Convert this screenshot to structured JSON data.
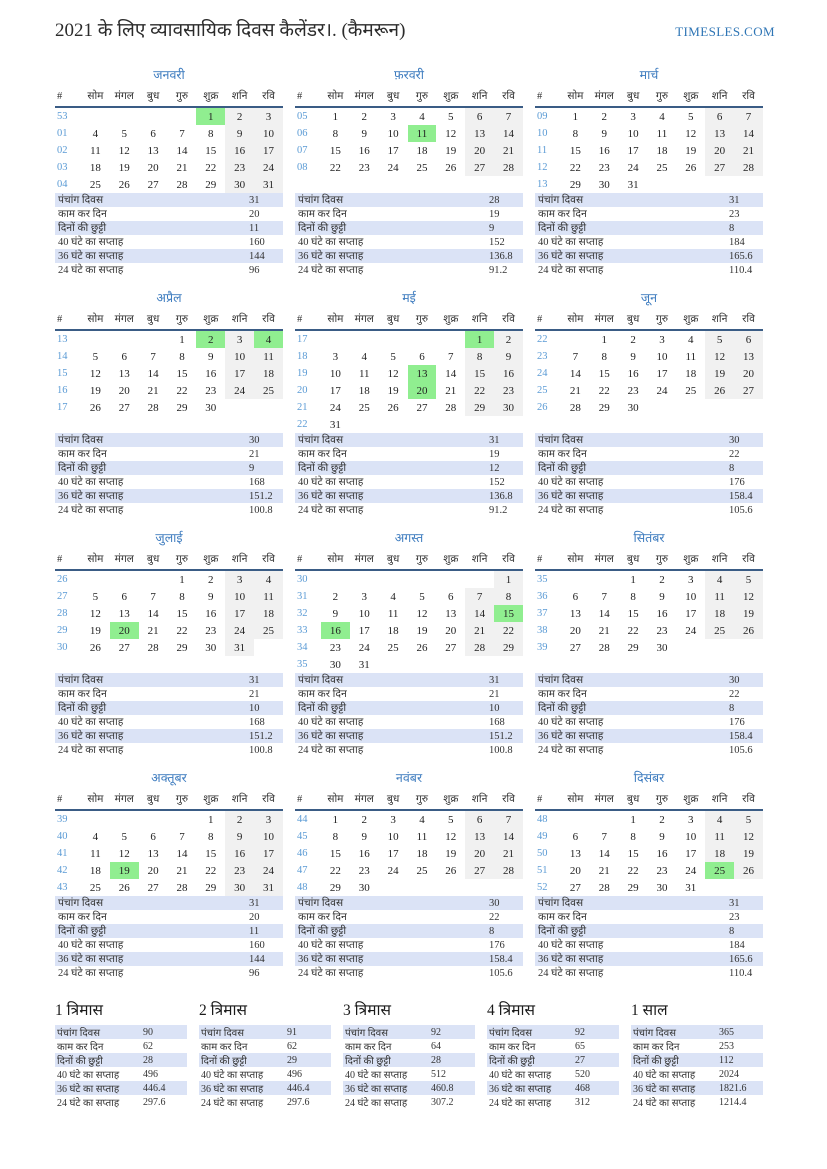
{
  "header": {
    "title": "2021 के लिए व्यावसायिक दिवस कैलेंडर।. (कैमरून)",
    "site": "TIMESLES.COM"
  },
  "colors": {
    "accent_blue": "#3e7cbf",
    "week_number_blue": "#5b9bd5",
    "holiday_green": "#90ee90",
    "weekend_gray": "#f1f1f1",
    "stats_row_blue": "#dbe3f6",
    "header_rule_blue": "#3a5c85",
    "link_blue": "#2e75b5"
  },
  "day_headers": [
    "#",
    "सोम",
    "मंगल",
    "बुध",
    "गुरु",
    "शुक्र",
    "शनि",
    "रवि"
  ],
  "stat_labels": [
    "पंचांग दिवस",
    "काम कर दिन",
    "दिनों की छुट्टी",
    "40 घंटे का सप्ताह",
    "36 घंटे का सप्ताह",
    "24 घंटे का सप्ताह"
  ],
  "months": [
    {
      "name": "जनवरी",
      "holidays": [
        1
      ],
      "weeks": [
        [
          "53",
          "",
          "",
          "",
          "",
          "1",
          "2",
          "3"
        ],
        [
          "01",
          "4",
          "5",
          "6",
          "7",
          "8",
          "9",
          "10"
        ],
        [
          "02",
          "11",
          "12",
          "13",
          "14",
          "15",
          "16",
          "17"
        ],
        [
          "03",
          "18",
          "19",
          "20",
          "21",
          "22",
          "23",
          "24"
        ],
        [
          "04",
          "25",
          "26",
          "27",
          "28",
          "29",
          "30",
          "31"
        ]
      ],
      "stats": [
        "31",
        "20",
        "11",
        "160",
        "144",
        "96"
      ]
    },
    {
      "name": "फ़रवरी",
      "holidays": [
        11
      ],
      "weeks": [
        [
          "05",
          "1",
          "2",
          "3",
          "4",
          "5",
          "6",
          "7"
        ],
        [
          "06",
          "8",
          "9",
          "10",
          "11",
          "12",
          "13",
          "14"
        ],
        [
          "07",
          "15",
          "16",
          "17",
          "18",
          "19",
          "20",
          "21"
        ],
        [
          "08",
          "22",
          "23",
          "24",
          "25",
          "26",
          "27",
          "28"
        ]
      ],
      "stats": [
        "28",
        "19",
        "9",
        "152",
        "136.8",
        "91.2"
      ]
    },
    {
      "name": "मार्च",
      "holidays": [],
      "weeks": [
        [
          "09",
          "1",
          "2",
          "3",
          "4",
          "5",
          "6",
          "7"
        ],
        [
          "10",
          "8",
          "9",
          "10",
          "11",
          "12",
          "13",
          "14"
        ],
        [
          "11",
          "15",
          "16",
          "17",
          "18",
          "19",
          "20",
          "21"
        ],
        [
          "12",
          "22",
          "23",
          "24",
          "25",
          "26",
          "27",
          "28"
        ],
        [
          "13",
          "29",
          "30",
          "31",
          "",
          "",
          "",
          ""
        ]
      ],
      "stats": [
        "31",
        "23",
        "8",
        "184",
        "165.6",
        "110.4"
      ]
    },
    {
      "name": "अप्रैल",
      "holidays": [
        2,
        4
      ],
      "weeks": [
        [
          "13",
          "",
          "",
          "",
          "1",
          "2",
          "3",
          "4"
        ],
        [
          "14",
          "5",
          "6",
          "7",
          "8",
          "9",
          "10",
          "11"
        ],
        [
          "15",
          "12",
          "13",
          "14",
          "15",
          "16",
          "17",
          "18"
        ],
        [
          "16",
          "19",
          "20",
          "21",
          "22",
          "23",
          "24",
          "25"
        ],
        [
          "17",
          "26",
          "27",
          "28",
          "29",
          "30",
          "",
          ""
        ]
      ],
      "stats": [
        "30",
        "21",
        "9",
        "168",
        "151.2",
        "100.8"
      ]
    },
    {
      "name": "मई",
      "holidays": [
        1,
        13,
        20
      ],
      "weeks": [
        [
          "17",
          "",
          "",
          "",
          "",
          "",
          "1",
          "2"
        ],
        [
          "18",
          "3",
          "4",
          "5",
          "6",
          "7",
          "8",
          "9"
        ],
        [
          "19",
          "10",
          "11",
          "12",
          "13",
          "14",
          "15",
          "16"
        ],
        [
          "20",
          "17",
          "18",
          "19",
          "20",
          "21",
          "22",
          "23"
        ],
        [
          "21",
          "24",
          "25",
          "26",
          "27",
          "28",
          "29",
          "30"
        ],
        [
          "22",
          "31",
          "",
          "",
          "",
          "",
          "",
          ""
        ]
      ],
      "stats": [
        "31",
        "19",
        "12",
        "152",
        "136.8",
        "91.2"
      ]
    },
    {
      "name": "जून",
      "holidays": [],
      "weeks": [
        [
          "22",
          "",
          "1",
          "2",
          "3",
          "4",
          "5",
          "6"
        ],
        [
          "23",
          "7",
          "8",
          "9",
          "10",
          "11",
          "12",
          "13"
        ],
        [
          "24",
          "14",
          "15",
          "16",
          "17",
          "18",
          "19",
          "20"
        ],
        [
          "25",
          "21",
          "22",
          "23",
          "24",
          "25",
          "26",
          "27"
        ],
        [
          "26",
          "28",
          "29",
          "30",
          "",
          "",
          "",
          ""
        ]
      ],
      "stats": [
        "30",
        "22",
        "8",
        "176",
        "158.4",
        "105.6"
      ]
    },
    {
      "name": "जुलाई",
      "holidays": [
        20
      ],
      "weeks": [
        [
          "26",
          "",
          "",
          "",
          "1",
          "2",
          "3",
          "4"
        ],
        [
          "27",
          "5",
          "6",
          "7",
          "8",
          "9",
          "10",
          "11"
        ],
        [
          "28",
          "12",
          "13",
          "14",
          "15",
          "16",
          "17",
          "18"
        ],
        [
          "29",
          "19",
          "20",
          "21",
          "22",
          "23",
          "24",
          "25"
        ],
        [
          "30",
          "26",
          "27",
          "28",
          "29",
          "30",
          "31",
          ""
        ]
      ],
      "stats": [
        "31",
        "21",
        "10",
        "168",
        "151.2",
        "100.8"
      ]
    },
    {
      "name": "अगस्त",
      "holidays": [
        15,
        16
      ],
      "weeks": [
        [
          "30",
          "",
          "",
          "",
          "",
          "",
          "",
          "1"
        ],
        [
          "31",
          "2",
          "3",
          "4",
          "5",
          "6",
          "7",
          "8"
        ],
        [
          "32",
          "9",
          "10",
          "11",
          "12",
          "13",
          "14",
          "15"
        ],
        [
          "33",
          "16",
          "17",
          "18",
          "19",
          "20",
          "21",
          "22"
        ],
        [
          "34",
          "23",
          "24",
          "25",
          "26",
          "27",
          "28",
          "29"
        ],
        [
          "35",
          "30",
          "31",
          "",
          "",
          "",
          "",
          ""
        ]
      ],
      "stats": [
        "31",
        "21",
        "10",
        "168",
        "151.2",
        "100.8"
      ]
    },
    {
      "name": "सितंबर",
      "holidays": [],
      "weeks": [
        [
          "35",
          "",
          "",
          "1",
          "2",
          "3",
          "4",
          "5"
        ],
        [
          "36",
          "6",
          "7",
          "8",
          "9",
          "10",
          "11",
          "12"
        ],
        [
          "37",
          "13",
          "14",
          "15",
          "16",
          "17",
          "18",
          "19"
        ],
        [
          "38",
          "20",
          "21",
          "22",
          "23",
          "24",
          "25",
          "26"
        ],
        [
          "39",
          "27",
          "28",
          "29",
          "30",
          "",
          "",
          ""
        ]
      ],
      "stats": [
        "30",
        "22",
        "8",
        "176",
        "158.4",
        "105.6"
      ]
    },
    {
      "name": "अक्तूबर",
      "holidays": [
        19
      ],
      "weeks": [
        [
          "39",
          "",
          "",
          "",
          "",
          "1",
          "2",
          "3"
        ],
        [
          "40",
          "4",
          "5",
          "6",
          "7",
          "8",
          "9",
          "10"
        ],
        [
          "41",
          "11",
          "12",
          "13",
          "14",
          "15",
          "16",
          "17"
        ],
        [
          "42",
          "18",
          "19",
          "20",
          "21",
          "22",
          "23",
          "24"
        ],
        [
          "43",
          "25",
          "26",
          "27",
          "28",
          "29",
          "30",
          "31"
        ]
      ],
      "stats": [
        "31",
        "20",
        "11",
        "160",
        "144",
        "96"
      ]
    },
    {
      "name": "नवंबर",
      "holidays": [],
      "weeks": [
        [
          "44",
          "1",
          "2",
          "3",
          "4",
          "5",
          "6",
          "7"
        ],
        [
          "45",
          "8",
          "9",
          "10",
          "11",
          "12",
          "13",
          "14"
        ],
        [
          "46",
          "15",
          "16",
          "17",
          "18",
          "19",
          "20",
          "21"
        ],
        [
          "47",
          "22",
          "23",
          "24",
          "25",
          "26",
          "27",
          "28"
        ],
        [
          "48",
          "29",
          "30",
          "",
          "",
          "",
          "",
          ""
        ]
      ],
      "stats": [
        "30",
        "22",
        "8",
        "176",
        "158.4",
        "105.6"
      ]
    },
    {
      "name": "दिसंबर",
      "holidays": [
        25
      ],
      "weeks": [
        [
          "48",
          "",
          "",
          "1",
          "2",
          "3",
          "4",
          "5"
        ],
        [
          "49",
          "6",
          "7",
          "8",
          "9",
          "10",
          "11",
          "12"
        ],
        [
          "50",
          "13",
          "14",
          "15",
          "16",
          "17",
          "18",
          "19"
        ],
        [
          "51",
          "20",
          "21",
          "22",
          "23",
          "24",
          "25",
          "26"
        ],
        [
          "52",
          "27",
          "28",
          "29",
          "30",
          "31",
          "",
          ""
        ]
      ],
      "stats": [
        "31",
        "23",
        "8",
        "184",
        "165.6",
        "110.4"
      ]
    }
  ],
  "summary": [
    {
      "title": "1 त्रिमास",
      "values": [
        "90",
        "62",
        "28",
        "496",
        "446.4",
        "297.6"
      ]
    },
    {
      "title": "2 त्रिमास",
      "values": [
        "91",
        "62",
        "29",
        "496",
        "446.4",
        "297.6"
      ]
    },
    {
      "title": "3 त्रिमास",
      "values": [
        "92",
        "64",
        "28",
        "512",
        "460.8",
        "307.2"
      ]
    },
    {
      "title": "4 त्रिमास",
      "values": [
        "92",
        "65",
        "27",
        "520",
        "468",
        "312"
      ]
    },
    {
      "title": "1 साल",
      "values": [
        "365",
        "253",
        "112",
        "2024",
        "1821.6",
        "1214.4"
      ]
    }
  ]
}
